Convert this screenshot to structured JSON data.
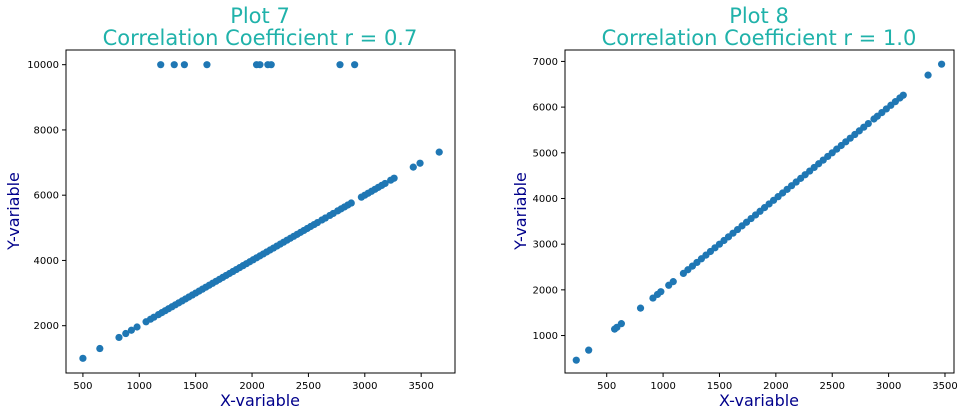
{
  "colors": {
    "title": "#20b2aa",
    "axis_label": "#00008b",
    "point": "#1f77b4",
    "axis": "#000000",
    "background": "#ffffff"
  },
  "chart_data": [
    {
      "type": "scatter",
      "title_line1": "Plot 7",
      "title_line2": "Correlation Coefficient  r = 0.7",
      "xlabel": "X-variable",
      "ylabel": "Y-variable",
      "xlim": [
        350,
        3800
      ],
      "ylim": [
        550,
        10450
      ],
      "xticks": [
        500,
        1000,
        1500,
        2000,
        2500,
        3000,
        3500
      ],
      "yticks": [
        2000,
        4000,
        6000,
        8000,
        10000
      ],
      "grid": false,
      "series": [
        {
          "line_points": [
            [
              500,
              1000
            ],
            [
              650,
              1300
            ],
            [
              820,
              1640
            ],
            [
              880,
              1760
            ],
            [
              930,
              1860
            ],
            [
              980,
              1960
            ],
            [
              1060,
              2120
            ],
            [
              1100,
              2200
            ],
            [
              1130,
              2260
            ],
            [
              1170,
              2340
            ],
            [
              1200,
              2400
            ],
            [
              1230,
              2460
            ],
            [
              1260,
              2520
            ],
            [
              1290,
              2580
            ],
            [
              1320,
              2640
            ],
            [
              1350,
              2700
            ],
            [
              1380,
              2760
            ],
            [
              1410,
              2820
            ],
            [
              1440,
              2880
            ],
            [
              1470,
              2940
            ],
            [
              1500,
              3000
            ],
            [
              1530,
              3060
            ],
            [
              1560,
              3120
            ],
            [
              1590,
              3180
            ],
            [
              1620,
              3240
            ],
            [
              1650,
              3300
            ],
            [
              1680,
              3360
            ],
            [
              1710,
              3420
            ],
            [
              1740,
              3480
            ],
            [
              1770,
              3540
            ],
            [
              1800,
              3600
            ],
            [
              1830,
              3660
            ],
            [
              1860,
              3720
            ],
            [
              1890,
              3780
            ],
            [
              1920,
              3840
            ],
            [
              1950,
              3900
            ],
            [
              1980,
              3960
            ],
            [
              2010,
              4020
            ],
            [
              2040,
              4080
            ],
            [
              2070,
              4140
            ],
            [
              2100,
              4200
            ],
            [
              2130,
              4260
            ],
            [
              2160,
              4320
            ],
            [
              2190,
              4380
            ],
            [
              2220,
              4440
            ],
            [
              2250,
              4500
            ],
            [
              2280,
              4560
            ],
            [
              2310,
              4620
            ],
            [
              2340,
              4680
            ],
            [
              2370,
              4740
            ],
            [
              2400,
              4800
            ],
            [
              2430,
              4860
            ],
            [
              2460,
              4920
            ],
            [
              2490,
              4980
            ],
            [
              2520,
              5040
            ],
            [
              2550,
              5100
            ],
            [
              2580,
              5160
            ],
            [
              2620,
              5240
            ],
            [
              2650,
              5300
            ],
            [
              2690,
              5380
            ],
            [
              2720,
              5440
            ],
            [
              2760,
              5520
            ],
            [
              2790,
              5580
            ],
            [
              2820,
              5640
            ],
            [
              2850,
              5700
            ],
            [
              2880,
              5760
            ],
            [
              2970,
              5940
            ],
            [
              3000,
              6000
            ],
            [
              3030,
              6060
            ],
            [
              3060,
              6120
            ],
            [
              3090,
              6180
            ],
            [
              3120,
              6240
            ],
            [
              3150,
              6300
            ],
            [
              3180,
              6360
            ],
            [
              3230,
              6460
            ],
            [
              3260,
              6520
            ],
            [
              3430,
              6860
            ],
            [
              3490,
              6980
            ],
            [
              3660,
              7320
            ]
          ],
          "outliers": [
            [
              1190,
              10000
            ],
            [
              1310,
              10000
            ],
            [
              1400,
              10000
            ],
            [
              1600,
              10000
            ],
            [
              2040,
              10000
            ],
            [
              2070,
              10000
            ],
            [
              2140,
              10000
            ],
            [
              2170,
              10000
            ],
            [
              2780,
              10000
            ],
            [
              2910,
              10000
            ]
          ]
        }
      ]
    },
    {
      "type": "scatter",
      "title_line1": "Plot 8",
      "title_line2": "Correlation Coefficient  r = 1.0",
      "xlabel": "X-variable",
      "ylabel": "Y-variable",
      "xlim": [
        130,
        3580
      ],
      "ylim": [
        180,
        7250
      ],
      "xticks": [
        500,
        1000,
        1500,
        2000,
        2500,
        3000,
        3500
      ],
      "yticks": [
        1000,
        2000,
        3000,
        4000,
        5000,
        6000,
        7000
      ],
      "grid": false,
      "series": [
        {
          "line_points": [
            [
              230,
              460
            ],
            [
              340,
              680
            ],
            [
              570,
              1140
            ],
            [
              590,
              1180
            ],
            [
              630,
              1260
            ],
            [
              800,
              1600
            ],
            [
              910,
              1820
            ],
            [
              950,
              1900
            ],
            [
              980,
              1960
            ],
            [
              1050,
              2100
            ],
            [
              1090,
              2180
            ],
            [
              1180,
              2360
            ],
            [
              1220,
              2440
            ],
            [
              1260,
              2520
            ],
            [
              1300,
              2600
            ],
            [
              1340,
              2680
            ],
            [
              1380,
              2760
            ],
            [
              1420,
              2840
            ],
            [
              1460,
              2920
            ],
            [
              1500,
              3000
            ],
            [
              1540,
              3080
            ],
            [
              1580,
              3160
            ],
            [
              1620,
              3240
            ],
            [
              1660,
              3320
            ],
            [
              1700,
              3400
            ],
            [
              1740,
              3480
            ],
            [
              1780,
              3560
            ],
            [
              1820,
              3640
            ],
            [
              1860,
              3720
            ],
            [
              1900,
              3800
            ],
            [
              1940,
              3880
            ],
            [
              1980,
              3960
            ],
            [
              2020,
              4040
            ],
            [
              2060,
              4120
            ],
            [
              2100,
              4200
            ],
            [
              2140,
              4280
            ],
            [
              2180,
              4360
            ],
            [
              2220,
              4440
            ],
            [
              2260,
              4520
            ],
            [
              2300,
              4600
            ],
            [
              2340,
              4680
            ],
            [
              2380,
              4760
            ],
            [
              2420,
              4840
            ],
            [
              2460,
              4920
            ],
            [
              2500,
              5000
            ],
            [
              2540,
              5080
            ],
            [
              2580,
              5160
            ],
            [
              2620,
              5240
            ],
            [
              2660,
              5320
            ],
            [
              2700,
              5400
            ],
            [
              2740,
              5480
            ],
            [
              2780,
              5560
            ],
            [
              2820,
              5640
            ],
            [
              2870,
              5740
            ],
            [
              2900,
              5800
            ],
            [
              2940,
              5880
            ],
            [
              2980,
              5960
            ],
            [
              3020,
              6040
            ],
            [
              3060,
              6120
            ],
            [
              3100,
              6200
            ],
            [
              3130,
              6260
            ],
            [
              3350,
              6700
            ],
            [
              3470,
              6940
            ]
          ],
          "outliers": []
        }
      ]
    }
  ]
}
